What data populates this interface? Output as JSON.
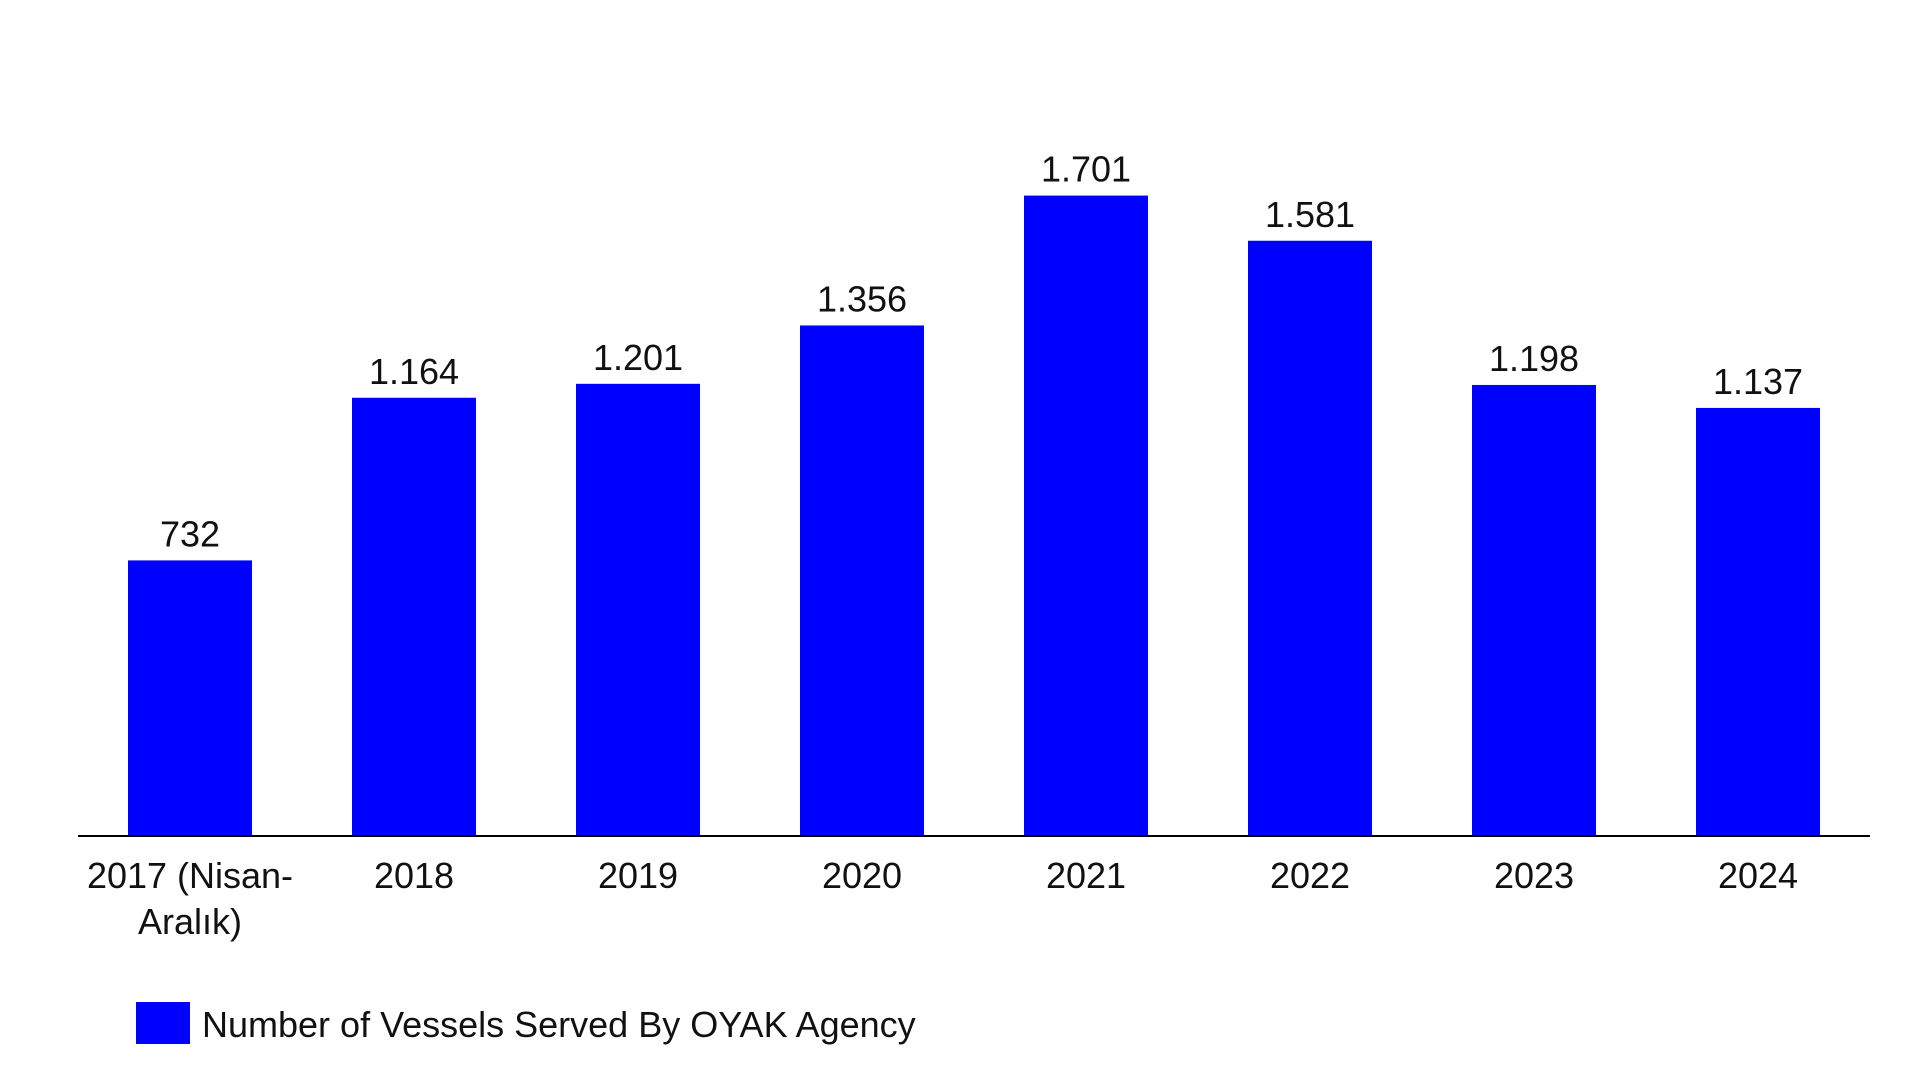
{
  "chart_data": {
    "type": "bar",
    "title": "",
    "xlabel": "",
    "ylabel": "",
    "categories": [
      "2017 (Nisan-Aralık)",
      "2018",
      "2019",
      "2020",
      "2021",
      "2022",
      "2023",
      "2024"
    ],
    "category_lines": [
      [
        "2017 (Nisan-",
        "Aralık)"
      ],
      [
        "2018"
      ],
      [
        "2019"
      ],
      [
        "2020"
      ],
      [
        "2021"
      ],
      [
        "2022"
      ],
      [
        "2023"
      ],
      [
        "2024"
      ]
    ],
    "series": [
      {
        "name": "Number of Vessels Served By OYAK Agency",
        "values": [
          732,
          1164,
          1201,
          1356,
          1701,
          1581,
          1198,
          1137
        ],
        "labels": [
          "732",
          "1.164",
          "1.201",
          "1.356",
          "1.701",
          "1.581",
          "1.198",
          "1.137"
        ],
        "color": "#0000ff"
      }
    ],
    "ylim": [
      0,
      2000
    ],
    "grid": false,
    "legend_position": "bottom-left"
  }
}
